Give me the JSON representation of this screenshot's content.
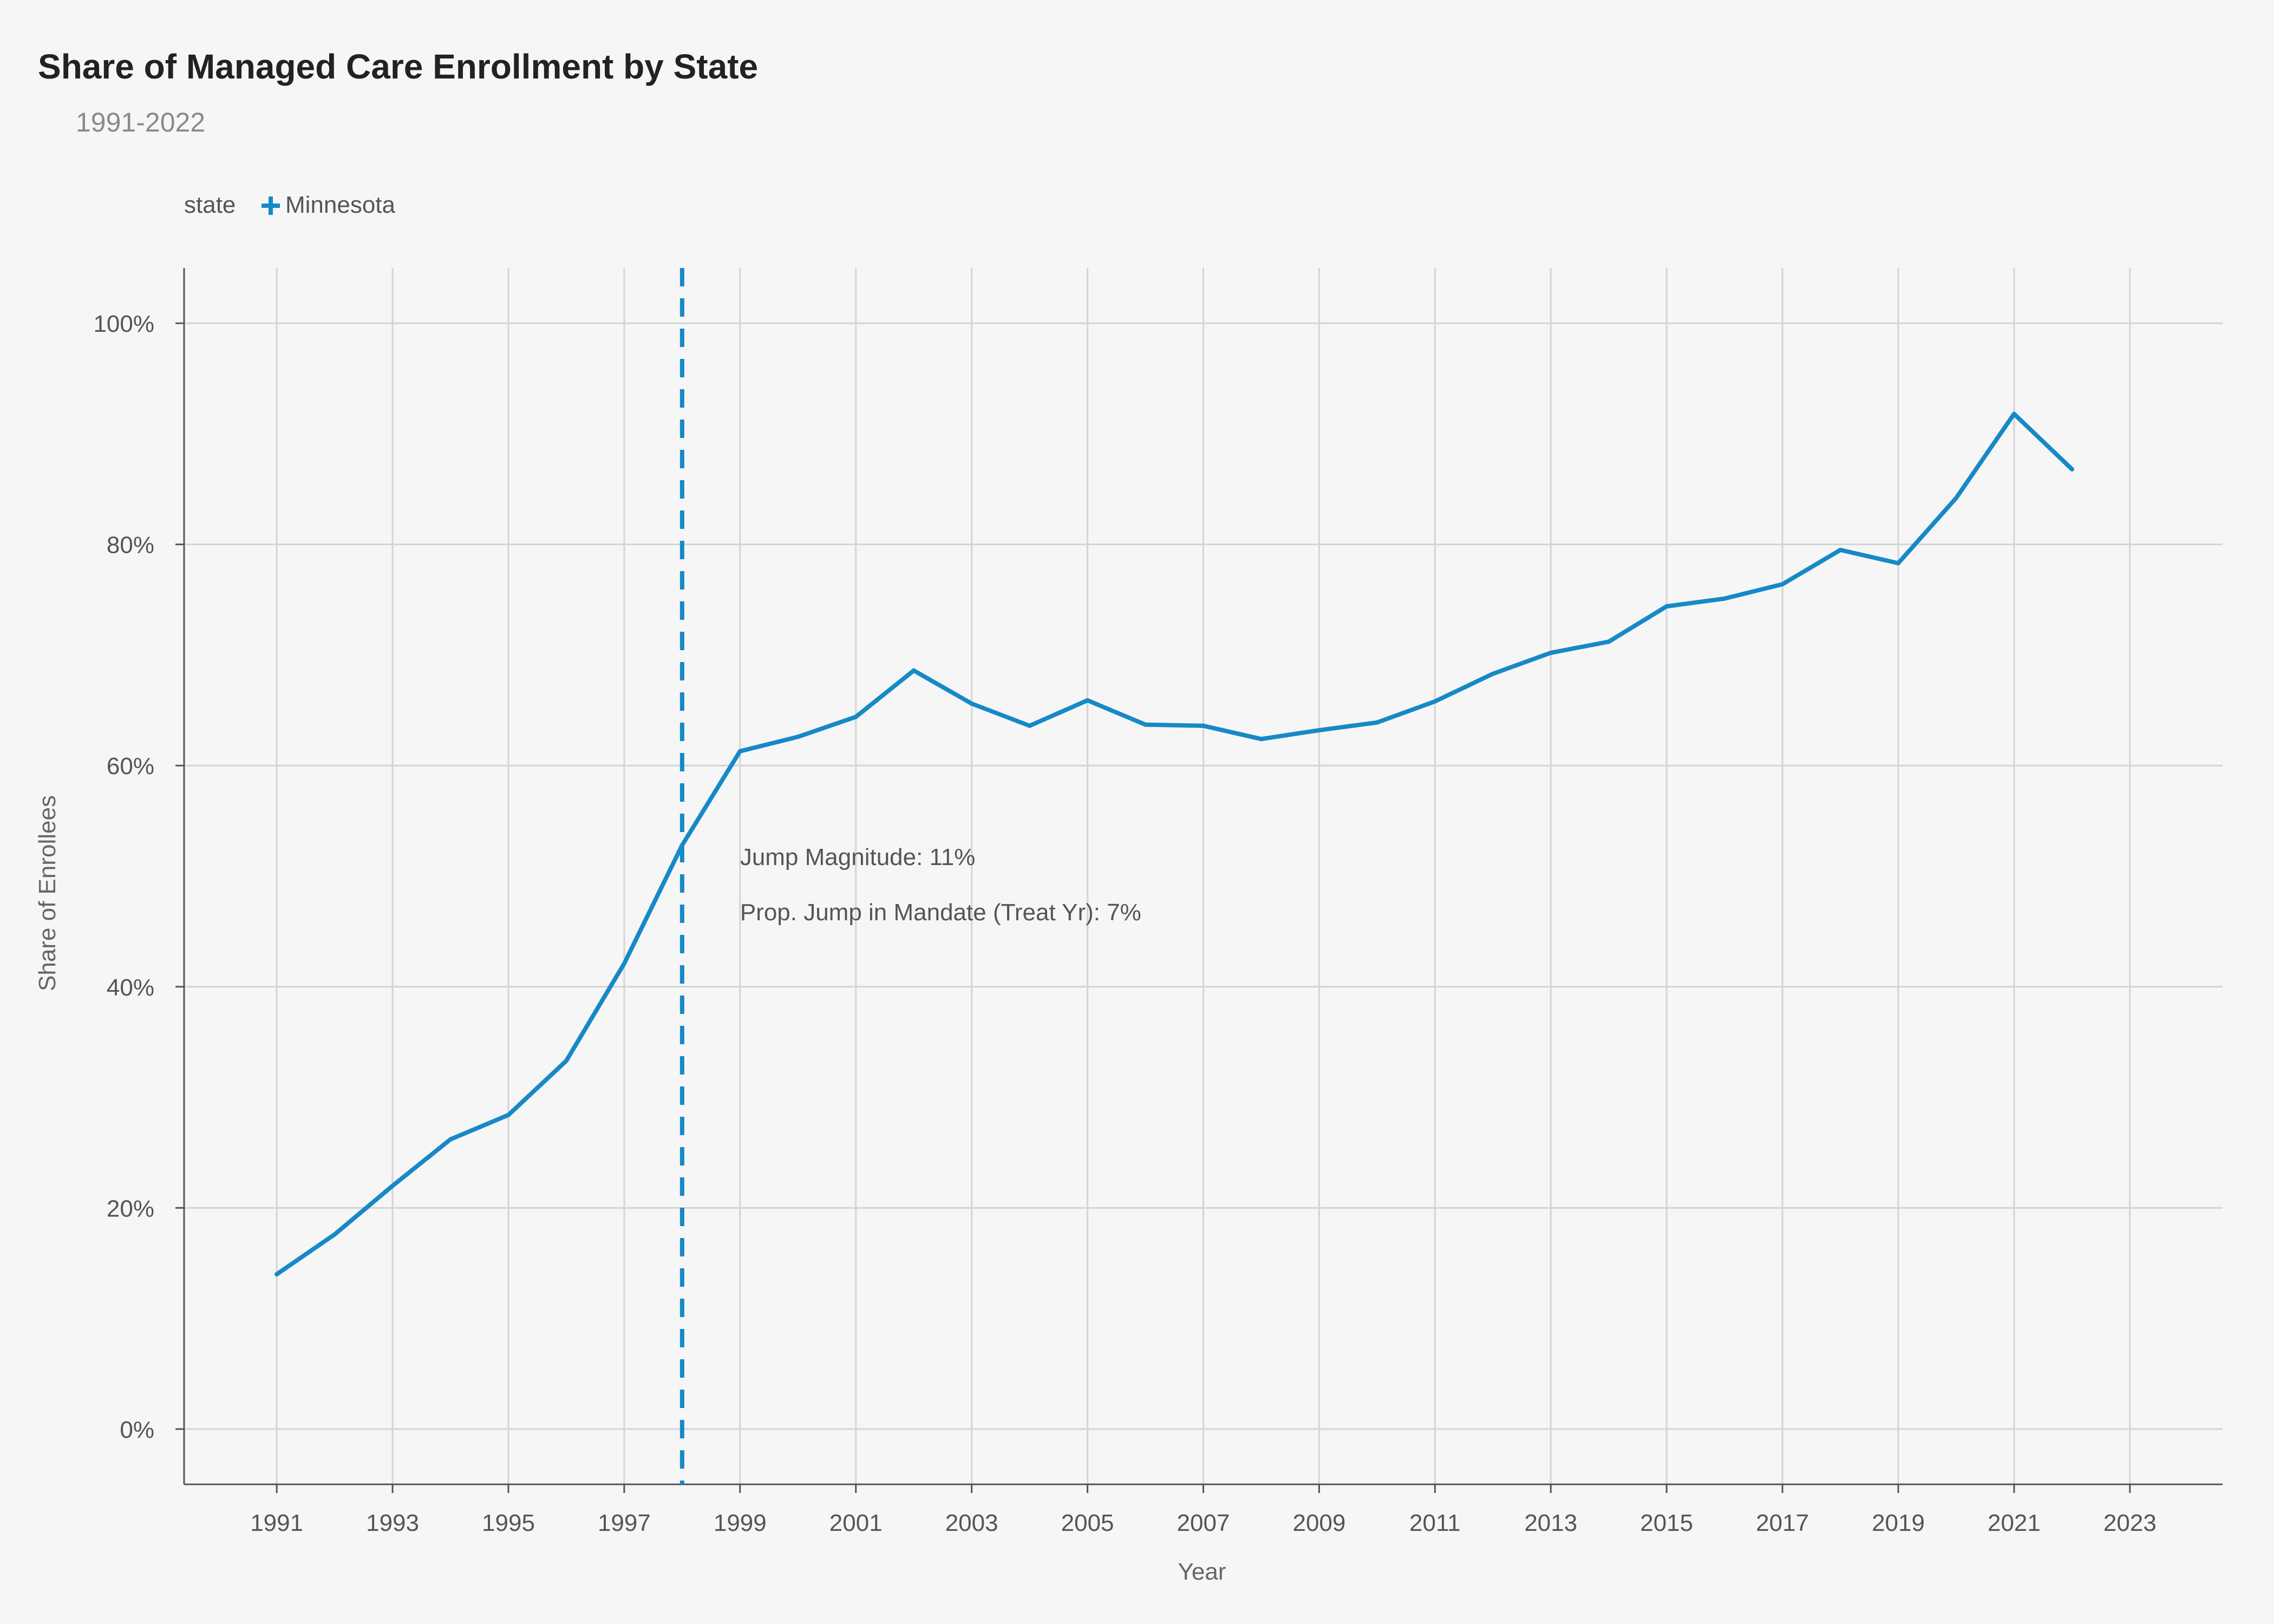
{
  "chart_data": {
    "type": "line",
    "title": "Share of Managed Care Enrollment by State",
    "subtitle": "1991-2022",
    "xlabel": "Year",
    "ylabel": "Share of Enrollees",
    "legend": {
      "title": "state",
      "placement": "top-left"
    },
    "xlim": [
      1989.4,
      2024.6
    ],
    "ylim": [
      -5,
      105
    ],
    "x_ticks": [
      1991,
      1993,
      1995,
      1997,
      1999,
      2001,
      2003,
      2005,
      2007,
      2009,
      2011,
      2013,
      2015,
      2017,
      2019,
      2021,
      2023
    ],
    "x_tick_labels": [
      "1991",
      "1993",
      "1995",
      "1997",
      "1999",
      "2001",
      "2003",
      "2005",
      "2007",
      "2009",
      "2011",
      "2013",
      "2015",
      "2017",
      "2019",
      "2021",
      "2023"
    ],
    "y_ticks": [
      0,
      20,
      40,
      60,
      80,
      100
    ],
    "y_tick_labels": [
      "0%",
      "20%",
      "40%",
      "60%",
      "80%",
      "100%"
    ],
    "grid": true,
    "series": [
      {
        "name": "Minnesota",
        "color": "#1689c6",
        "x": [
          1991,
          1992,
          1993,
          1994,
          1995,
          1996,
          1997,
          1998,
          1999,
          2000,
          2001,
          2002,
          2003,
          2004,
          2005,
          2006,
          2007,
          2008,
          2009,
          2010,
          2011,
          2012,
          2013,
          2014,
          2015,
          2016,
          2017,
          2018,
          2019,
          2020,
          2021,
          2022
        ],
        "y": [
          14.0,
          17.6,
          22.0,
          26.2,
          28.4,
          33.3,
          42.1,
          52.8,
          61.3,
          62.6,
          64.4,
          68.6,
          65.6,
          63.6,
          65.9,
          63.7,
          63.6,
          62.4,
          63.2,
          63.9,
          65.8,
          68.3,
          70.2,
          71.2,
          74.4,
          75.1,
          76.4,
          79.5,
          78.3,
          84.2,
          91.8,
          86.8
        ]
      }
    ],
    "reference_line": {
      "x": 1998,
      "style": "dashed",
      "color": "#1689c6"
    },
    "annotations": [
      {
        "text": "Jump Magnitude: 11%",
        "x": 1999,
        "y": 51
      },
      {
        "text": "Prop. Jump in Mandate (Treat Yr): 7%",
        "x": 1999,
        "y": 46
      }
    ]
  }
}
